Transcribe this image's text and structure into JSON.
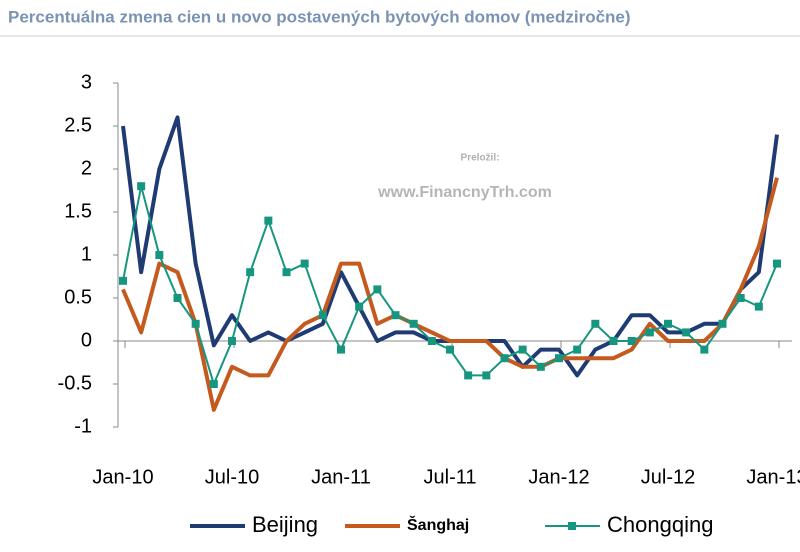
{
  "chart_data": {
    "type": "line",
    "title": "Percentuálna zmena cien u novo postavených bytových domov (medziročne)",
    "annotations": [
      "Preložil:",
      "www.FinancnyTrh.com"
    ],
    "categories": [
      "Jan-10",
      null,
      null,
      null,
      null,
      null,
      "Jul-10",
      null,
      null,
      null,
      null,
      null,
      "Jan-11",
      null,
      null,
      null,
      null,
      null,
      "Jul-11",
      null,
      null,
      null,
      null,
      null,
      "Jan-12",
      null,
      null,
      null,
      null,
      null,
      "Jul-12",
      null,
      null,
      null,
      null,
      null,
      "Jan-13"
    ],
    "ylim": [
      -1,
      3
    ],
    "yticks": [
      {
        "value": 3,
        "label": "3"
      },
      {
        "value": 2.5,
        "label": "2.5"
      },
      {
        "value": 2,
        "label": "2"
      },
      {
        "value": 1.5,
        "label": "1.5"
      },
      {
        "value": 1,
        "label": "1"
      },
      {
        "value": 0.5,
        "label": "0.5"
      },
      {
        "value": 0,
        "label": "0"
      },
      {
        "value": -0.5,
        "label": "-0.5"
      },
      {
        "value": -1,
        "label": "-1"
      }
    ],
    "series": [
      {
        "name": "Beijing",
        "color": "#1f3b73",
        "values": [
          2.5,
          0.8,
          2.0,
          2.6,
          0.9,
          -0.05,
          0.3,
          0.0,
          0.1,
          0.0,
          0.1,
          0.2,
          0.8,
          0.4,
          0.0,
          0.1,
          0.1,
          0.0,
          0.0,
          0.0,
          0.0,
          0.0,
          -0.3,
          -0.1,
          -0.1,
          -0.4,
          -0.1,
          0.0,
          0.3,
          0.3,
          0.1,
          0.1,
          0.2,
          0.2,
          0.6,
          0.8,
          2.4
        ]
      },
      {
        "name": "Šanghaj",
        "color": "#c55a1e",
        "values": [
          0.6,
          0.1,
          0.9,
          0.8,
          0.2,
          -0.8,
          -0.3,
          -0.4,
          -0.4,
          0.0,
          0.2,
          0.3,
          0.9,
          0.9,
          0.2,
          0.3,
          0.2,
          0.1,
          0.0,
          0.0,
          0.0,
          -0.2,
          -0.3,
          -0.3,
          -0.2,
          -0.2,
          -0.2,
          -0.2,
          -0.1,
          0.2,
          0.0,
          0.0,
          0.0,
          0.2,
          0.6,
          1.1,
          1.9
        ]
      },
      {
        "name": "Chongqing",
        "color": "#17967f",
        "marker": "square",
        "values": [
          0.7,
          1.8,
          1.0,
          0.5,
          0.2,
          -0.5,
          0.0,
          0.8,
          1.4,
          0.8,
          0.9,
          0.3,
          -0.1,
          0.4,
          0.6,
          0.3,
          0.2,
          0.0,
          -0.1,
          -0.4,
          -0.4,
          -0.2,
          -0.1,
          -0.3,
          -0.2,
          -0.1,
          0.2,
          0.0,
          0.0,
          0.1,
          0.2,
          0.1,
          -0.1,
          0.2,
          0.5,
          0.4,
          0.9
        ]
      }
    ]
  }
}
